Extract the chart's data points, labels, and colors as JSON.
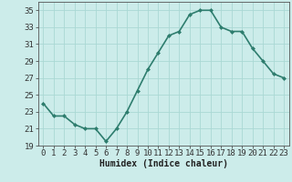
{
  "x": [
    0,
    1,
    2,
    3,
    4,
    5,
    6,
    7,
    8,
    9,
    10,
    11,
    12,
    13,
    14,
    15,
    16,
    17,
    18,
    19,
    20,
    21,
    22,
    23
  ],
  "y": [
    24,
    22.5,
    22.5,
    21.5,
    21,
    21,
    19.5,
    21,
    23,
    25.5,
    28,
    30,
    32,
    32.5,
    34.5,
    35,
    35,
    33,
    32.5,
    32.5,
    30.5,
    29,
    27.5,
    27
  ],
  "xlabel": "Humidex (Indice chaleur)",
  "line_color": "#2e7d6e",
  "marker": "D",
  "marker_size": 2.0,
  "background_color": "#ccecea",
  "grid_color": "#aad8d4",
  "ylim": [
    19,
    36
  ],
  "yticks": [
    19,
    21,
    23,
    25,
    27,
    29,
    31,
    33,
    35
  ],
  "xlim": [
    -0.5,
    23.5
  ],
  "xticks": [
    0,
    1,
    2,
    3,
    4,
    5,
    6,
    7,
    8,
    9,
    10,
    11,
    12,
    13,
    14,
    15,
    16,
    17,
    18,
    19,
    20,
    21,
    22,
    23
  ],
  "xlabel_fontsize": 7,
  "tick_fontsize": 6.5,
  "line_width": 1.2
}
